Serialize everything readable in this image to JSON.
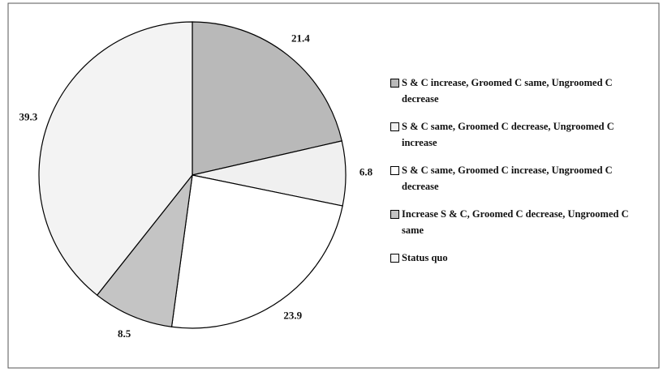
{
  "chart_data": {
    "type": "pie",
    "categories": [
      "S & C increase, Groomed C same, Ungroomed C decrease",
      "S & C same, Groomed C decrease, Ungroomed C increase",
      "S & C same, Groomed C increase, Ungroomed C decrease",
      "Increase S & C, Groomed C decrease, Ungroomed C same",
      "Status quo"
    ],
    "values": [
      21.4,
      6.8,
      23.9,
      8.5,
      39.3
    ],
    "colors": [
      "#b9b9b9",
      "#f0f0f0",
      "#ffffff",
      "#c4c4c4",
      "#f3f3f3"
    ],
    "legend": "right"
  }
}
